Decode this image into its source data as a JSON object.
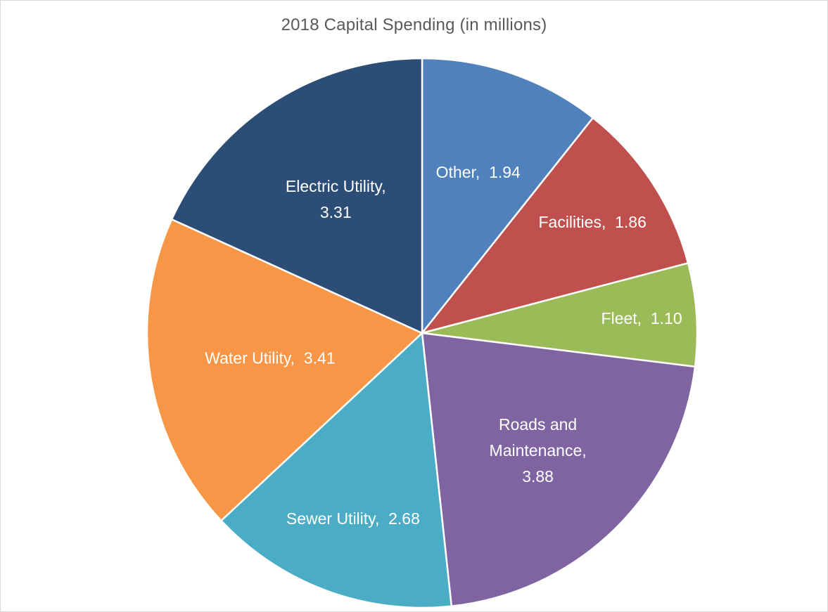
{
  "chart_data": {
    "type": "pie",
    "title": "2018 Capital Spending (in millions)",
    "start_angle_deg": 0,
    "direction": "clockwise",
    "slices": [
      {
        "label": "Other",
        "value": 1.94,
        "value_label": "1.94",
        "color": "#4f81bd",
        "label_lines": [
          "Other,  1.94"
        ]
      },
      {
        "label": "Facilities",
        "value": 1.86,
        "value_label": "1.86",
        "color": "#c0504d",
        "label_lines": [
          "Facilities,  1.86"
        ]
      },
      {
        "label": "Fleet",
        "value": 1.1,
        "value_label": "1.10",
        "color": "#9bbb59",
        "label_lines": [
          "Fleet,  1.10"
        ]
      },
      {
        "label": "Roads and Maintenance",
        "value": 3.88,
        "value_label": "3.88",
        "color": "#8064a2",
        "label_lines": [
          "Roads and",
          "Maintenance,",
          "3.88"
        ]
      },
      {
        "label": "Sewer Utility",
        "value": 2.68,
        "value_label": "2.68",
        "color": "#4bacc6",
        "label_lines": [
          "Sewer Utility,  2.68"
        ]
      },
      {
        "label": "Water Utility",
        "value": 3.41,
        "value_label": "3.41",
        "color": "#f79646",
        "label_lines": [
          "Water Utility,  3.41"
        ]
      },
      {
        "label": "Electric Utility",
        "value": 3.31,
        "value_label": "3.31",
        "color": "#2c4d75",
        "label_lines": [
          "Electric Utility,",
          "3.31"
        ]
      }
    ]
  }
}
